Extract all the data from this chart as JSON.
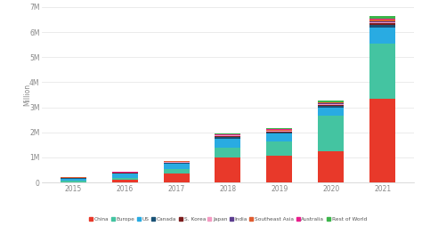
{
  "years": [
    "2015",
    "2016",
    "2017",
    "2018",
    "2019",
    "2020",
    "2021"
  ],
  "series": {
    "China": [
      0.01,
      0.11,
      0.35,
      1.0,
      1.06,
      1.25,
      3.35
    ],
    "Europe": [
      0.05,
      0.08,
      0.2,
      0.4,
      0.56,
      1.4,
      2.2
    ],
    "US": [
      0.1,
      0.16,
      0.2,
      0.36,
      0.33,
      0.35,
      0.64
    ],
    "Canada": [
      0.01,
      0.02,
      0.03,
      0.05,
      0.05,
      0.05,
      0.09
    ],
    "S. Korea": [
      0.01,
      0.01,
      0.02,
      0.03,
      0.04,
      0.05,
      0.08
    ],
    "Japan": [
      0.02,
      0.02,
      0.02,
      0.03,
      0.03,
      0.04,
      0.05
    ],
    "India": [
      0.0,
      0.0,
      0.01,
      0.01,
      0.01,
      0.02,
      0.03
    ],
    "Southeast Asia": [
      0.01,
      0.01,
      0.01,
      0.02,
      0.02,
      0.03,
      0.05
    ],
    "Australia": [
      0.0,
      0.01,
      0.01,
      0.01,
      0.02,
      0.02,
      0.03
    ],
    "Rest of World": [
      0.01,
      0.01,
      0.02,
      0.03,
      0.04,
      0.06,
      0.13
    ]
  },
  "colors": {
    "China": "#e8392a",
    "Europe": "#44c4a1",
    "US": "#29abe2",
    "Canada": "#1a5276",
    "S. Korea": "#7b1c1c",
    "Japan": "#f49ac2",
    "India": "#5c3d8f",
    "Southeast Asia": "#e05c30",
    "Australia": "#e91e8c",
    "Rest of World": "#3cb54a"
  },
  "ylabel": "Million",
  "ylim": [
    0,
    7
  ],
  "yticks": [
    0,
    1,
    2,
    3,
    4,
    5,
    6,
    7
  ],
  "ytick_labels": [
    "0",
    "1M",
    "2M",
    "3M",
    "4M",
    "5M",
    "6M",
    "7M"
  ],
  "bg_color": "#ffffff",
  "grid_color": "#e8e8e8",
  "bar_width": 0.5,
  "tick_color": "#888888",
  "spine_color": "#cccccc"
}
